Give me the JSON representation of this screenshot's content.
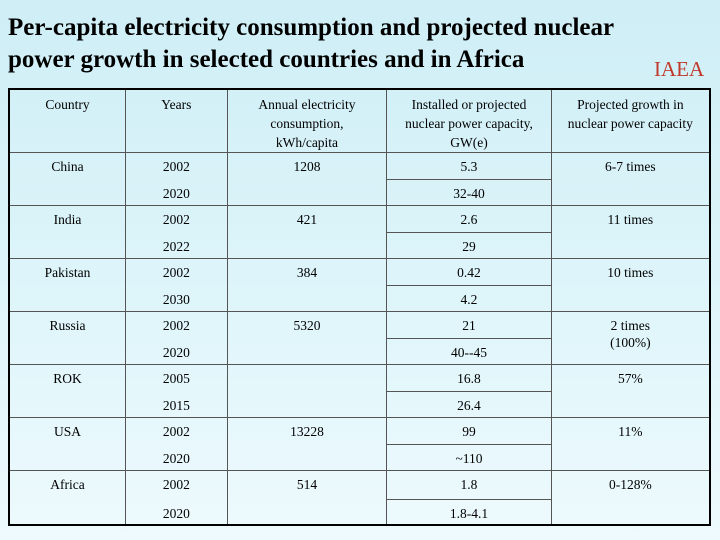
{
  "title": "Per-capita electricity consumption and projected nuclear\npower growth in selected countries and in Africa",
  "brand": "IAEA",
  "headers": {
    "country": "Country",
    "years": "Years",
    "consumption": "Annual electricity consumption, kWh/capita",
    "capacity": "Installed or projected nuclear power capacity, GW(e)",
    "growth": "Projected growth in nuclear power capacity"
  },
  "rows": [
    {
      "country": "China",
      "year1": "2002",
      "consumption": "1208",
      "cap1": "5.3",
      "year2": "2020",
      "cap2": "32-40",
      "growth": "6-7 times"
    },
    {
      "country": "India",
      "year1": "2002",
      "consumption": "421",
      "cap1": "2.6",
      "year2": "2022",
      "cap2": "29",
      "growth": "11 times"
    },
    {
      "country": "Pakistan",
      "year1": "2002",
      "consumption": "384",
      "cap1": "0.42",
      "year2": "2030",
      "cap2": "4.2",
      "growth": "10 times"
    },
    {
      "country": "Russia",
      "year1": "2002",
      "consumption": "5320",
      "cap1": "21",
      "year2": "2020",
      "cap2": "40--45",
      "growth": "2 times (100%)"
    },
    {
      "country": "ROK",
      "year1": "2005",
      "consumption": "",
      "cap1": "16.8",
      "year2": "2015",
      "cap2": "26.4",
      "growth": "57%"
    },
    {
      "country": "USA",
      "year1": "2002",
      "consumption": "13228",
      "cap1": "99",
      "year2": "2020",
      "cap2": "~110",
      "growth": "11%"
    },
    {
      "country": "Africa",
      "year1": "2002",
      "consumption": "514",
      "cap1": "1.8",
      "year2": "2020",
      "cap2": "1.8-4.1",
      "growth": "0-128%"
    }
  ]
}
